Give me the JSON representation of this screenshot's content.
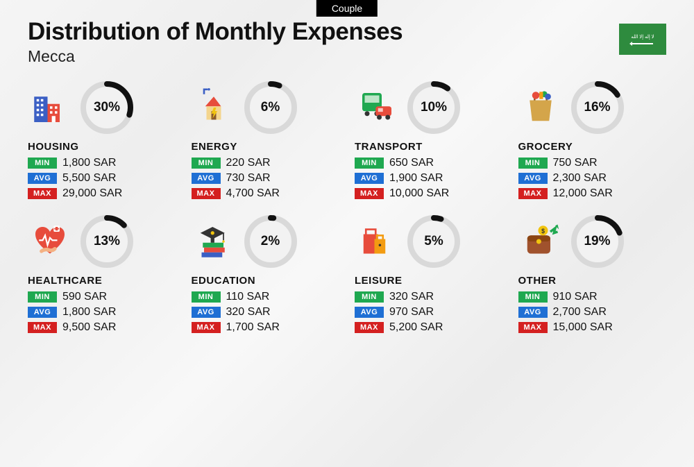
{
  "tag_label": "Couple",
  "title": "Distribution of Monthly Expenses",
  "city": "Mecca",
  "currency": "SAR",
  "ring": {
    "track_color": "#d9d9d9",
    "progress_color": "#111111",
    "bg_color": "#f2f2f2",
    "stroke_width": 8
  },
  "labels": {
    "min": "MIN",
    "avg": "AVG",
    "max": "MAX"
  },
  "tag_colors": {
    "min": "#1fa850",
    "avg": "#1f6fd4",
    "max": "#d42020"
  },
  "categories": [
    {
      "name": "HOUSING",
      "percent": 30,
      "min": "1,800",
      "avg": "5,500",
      "max": "29,000",
      "icon": "housing"
    },
    {
      "name": "ENERGY",
      "percent": 6,
      "min": "220",
      "avg": "730",
      "max": "4,700",
      "icon": "energy"
    },
    {
      "name": "TRANSPORT",
      "percent": 10,
      "min": "650",
      "avg": "1,900",
      "max": "10,000",
      "icon": "transport"
    },
    {
      "name": "GROCERY",
      "percent": 16,
      "min": "750",
      "avg": "2,300",
      "max": "12,000",
      "icon": "grocery"
    },
    {
      "name": "HEALTHCARE",
      "percent": 13,
      "min": "590",
      "avg": "1,800",
      "max": "9,500",
      "icon": "healthcare"
    },
    {
      "name": "EDUCATION",
      "percent": 2,
      "min": "110",
      "avg": "320",
      "max": "1,700",
      "icon": "education"
    },
    {
      "name": "LEISURE",
      "percent": 5,
      "min": "320",
      "avg": "970",
      "max": "5,200",
      "icon": "leisure"
    },
    {
      "name": "OTHER",
      "percent": 19,
      "min": "910",
      "avg": "2,700",
      "max": "15,000",
      "icon": "other"
    }
  ]
}
